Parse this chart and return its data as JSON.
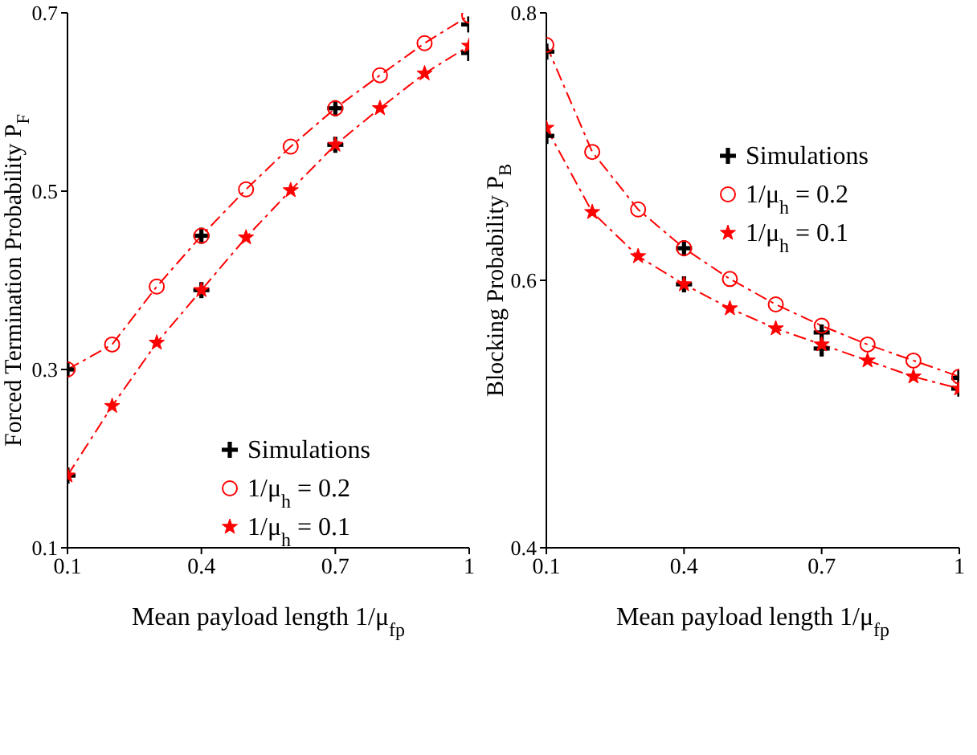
{
  "chart_data": [
    {
      "type": "line",
      "xlabel": "Mean payload length 1/μ$_{fp}$",
      "ylabel": "Forced Termination Probability P$_{F}$",
      "x": [
        0.1,
        0.2,
        0.3,
        0.4,
        0.5,
        0.6,
        0.7,
        0.8,
        0.9,
        1
      ],
      "xlim": [
        0.1,
        1
      ],
      "xticks": [
        0.1,
        0.4,
        0.7,
        1
      ],
      "ylim": [
        0.1,
        0.7
      ],
      "yticks": [
        0.1,
        0.3,
        0.5,
        0.7
      ],
      "legend": "bottom right",
      "line_style": "dashed",
      "series": [
        {
          "name": "Simulations",
          "type": "scatter",
          "color": "#000000",
          "marker": "cross",
          "x": [
            0.1,
            0.1,
            0.4,
            0.4,
            0.7,
            0.7,
            1,
            1
          ],
          "values": [
            0.3,
            0.181,
            0.45,
            0.389,
            0.593,
            0.552,
            0.687,
            0.655
          ]
        },
        {
          "name": "1/μ$_{h}$ = 0.2",
          "type": "line",
          "color": "#ff0000",
          "marker": "circle",
          "values": [
            0.3,
            0.328,
            0.393,
            0.45,
            0.502,
            0.55,
            0.593,
            0.63,
            0.666,
            0.697
          ]
        },
        {
          "name": "1/μ$_{h}$ = 0.1",
          "type": "line",
          "color": "#ff0000",
          "marker": "star",
          "values": [
            0.181,
            0.259,
            0.33,
            0.389,
            0.448,
            0.501,
            0.552,
            0.593,
            0.632,
            0.663
          ]
        }
      ]
    },
    {
      "type": "line",
      "xlabel": "Mean payload length 1/μ$_{fp}$",
      "ylabel": "Blocking Probability P$_{B}$",
      "x": [
        0.1,
        0.2,
        0.3,
        0.4,
        0.5,
        0.6,
        0.7,
        0.8,
        0.9,
        1
      ],
      "xlim": [
        0.1,
        1
      ],
      "xticks": [
        0.1,
        0.4,
        0.7,
        1
      ],
      "ylim": [
        0.4,
        0.8
      ],
      "yticks": [
        0.4,
        0.6,
        0.8
      ],
      "legend": "top right",
      "line_style": "dashed",
      "series": [
        {
          "name": "Simulations",
          "type": "scatter",
          "color": "#000000",
          "marker": "cross",
          "x": [
            0.1,
            0.1,
            0.4,
            0.4,
            0.7,
            0.7,
            1,
            1
          ],
          "values": [
            0.771,
            0.708,
            0.624,
            0.597,
            0.561,
            0.549,
            0.527,
            0.519
          ]
        },
        {
          "name": "1/μ$_{h}$ = 0.2",
          "type": "line",
          "color": "#ff0000",
          "marker": "circle",
          "values": [
            0.776,
            0.696,
            0.653,
            0.624,
            0.601,
            0.582,
            0.566,
            0.552,
            0.54,
            0.528
          ]
        },
        {
          "name": "1/μ$_{h}$ = 0.1",
          "type": "line",
          "color": "#ff0000",
          "marker": "star",
          "values": [
            0.714,
            0.651,
            0.618,
            0.597,
            0.579,
            0.564,
            0.552,
            0.54,
            0.528,
            0.519
          ]
        }
      ]
    }
  ]
}
